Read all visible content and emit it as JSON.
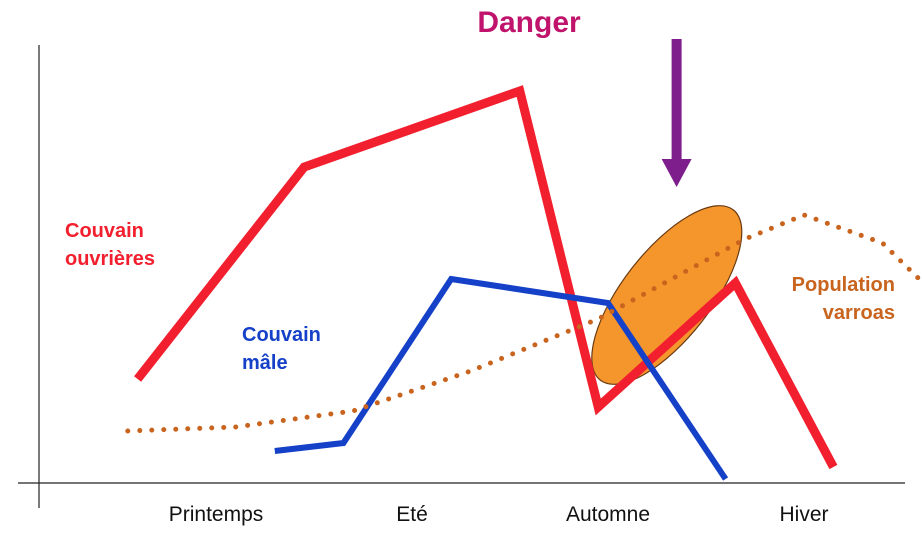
{
  "chart_data": {
    "type": "line",
    "title": "Danger",
    "xlabel": "",
    "ylabel": "",
    "categories": [
      "Printemps",
      "Eté",
      "Automne",
      "Hiver"
    ],
    "x_range": [
      0,
      4
    ],
    "y_range": [
      0,
      100
    ],
    "grid": false,
    "colors": {
      "ouvrieres": "#f2202e",
      "male": "#1540c8",
      "varroas": "#c8641e",
      "danger": "#c0136c",
      "arrow": "#7e1e8c",
      "zone": "#f5962d"
    },
    "series": [
      {
        "name": "Couvain ouvrières",
        "label_lines": [
          "Couvain",
          "ouvrières"
        ],
        "style": "solid",
        "points": [
          [
            -0.4,
            26
          ],
          [
            0.45,
            79
          ],
          [
            1.55,
            98
          ],
          [
            1.95,
            19
          ],
          [
            2.65,
            50
          ],
          [
            3.15,
            4
          ]
        ]
      },
      {
        "name": "Couvain mâle",
        "label_lines": [
          "Couvain",
          "mâle"
        ],
        "style": "solid",
        "points": [
          [
            0.3,
            8
          ],
          [
            0.65,
            10
          ],
          [
            1.2,
            51
          ],
          [
            2.0,
            45
          ],
          [
            2.6,
            1
          ]
        ]
      },
      {
        "name": "Population varroas",
        "label_lines": [
          "Population",
          "varroas"
        ],
        "style": "dotted",
        "points": [
          [
            -0.45,
            13
          ],
          [
            0.1,
            14
          ],
          [
            0.7,
            18
          ],
          [
            1.3,
            28
          ],
          [
            1.95,
            41
          ],
          [
            2.7,
            61
          ],
          [
            3.0,
            67
          ],
          [
            3.4,
            60
          ],
          [
            3.9,
            36
          ]
        ]
      }
    ],
    "annotations": [
      {
        "type": "arrow",
        "x": 2.35,
        "y_from": 111,
        "y_to": 74
      },
      {
        "type": "ellipse",
        "cx": 2.3,
        "cy": 47,
        "rx_data": 0.38,
        "ry_data": 36,
        "angle": 40
      }
    ]
  }
}
